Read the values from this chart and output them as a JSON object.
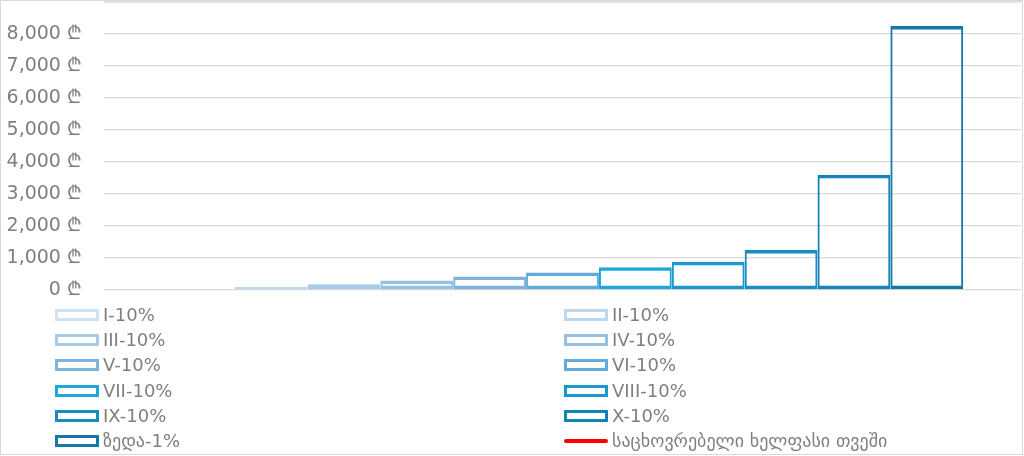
{
  "chart_data": {
    "type": "bar",
    "categories": [
      null
    ],
    "series": [
      {
        "name": "I-10%",
        "color": "#cfe2f3",
        "values": [
          40
        ]
      },
      {
        "name": "II-10%",
        "color": "#bdd7ee",
        "values": [
          90
        ]
      },
      {
        "name": "III-10%",
        "color": "#a9cbe8",
        "values": [
          180
        ]
      },
      {
        "name": "IV-10%",
        "color": "#96c0e4",
        "values": [
          300
        ]
      },
      {
        "name": "V-10%",
        "color": "#7db4de",
        "values": [
          420
        ]
      },
      {
        "name": "VI-10%",
        "color": "#62a9dc",
        "values": [
          550
        ]
      },
      {
        "name": "VII-10%",
        "color": "#1ea6dd",
        "values": [
          710
        ]
      },
      {
        "name": "VIII-10%",
        "color": "#1898cf",
        "values": [
          880
        ]
      },
      {
        "name": "IX-10%",
        "color": "#168cbf",
        "values": [
          1250
        ]
      },
      {
        "name": "X-10%",
        "color": "#1382b4",
        "values": [
          3600
        ]
      },
      {
        "name": "ზედა-1%",
        "color": "#1479a6",
        "values": [
          8250
        ]
      },
      {
        "name": "საცხოვრებელი ხელფასი თვეში",
        "type": "line",
        "color": "#ff0000",
        "values": [
          null
        ]
      }
    ],
    "ylim": [
      0,
      9000
    ],
    "yticks": [
      {
        "value": 0,
        "label": "0 ₾"
      },
      {
        "value": 1000,
        "label": "1,000 ₾"
      },
      {
        "value": 2000,
        "label": "2,000 ₾"
      },
      {
        "value": 3000,
        "label": "3,000 ₾"
      },
      {
        "value": 4000,
        "label": "4,000 ₾"
      },
      {
        "value": 5000,
        "label": "5,000 ₾"
      },
      {
        "value": 6000,
        "label": "6,000 ₾"
      },
      {
        "value": 7000,
        "label": "7,000 ₾"
      },
      {
        "value": 8000,
        "label": "8,000 ₾"
      }
    ],
    "grid": "y",
    "legend": "bottom"
  }
}
